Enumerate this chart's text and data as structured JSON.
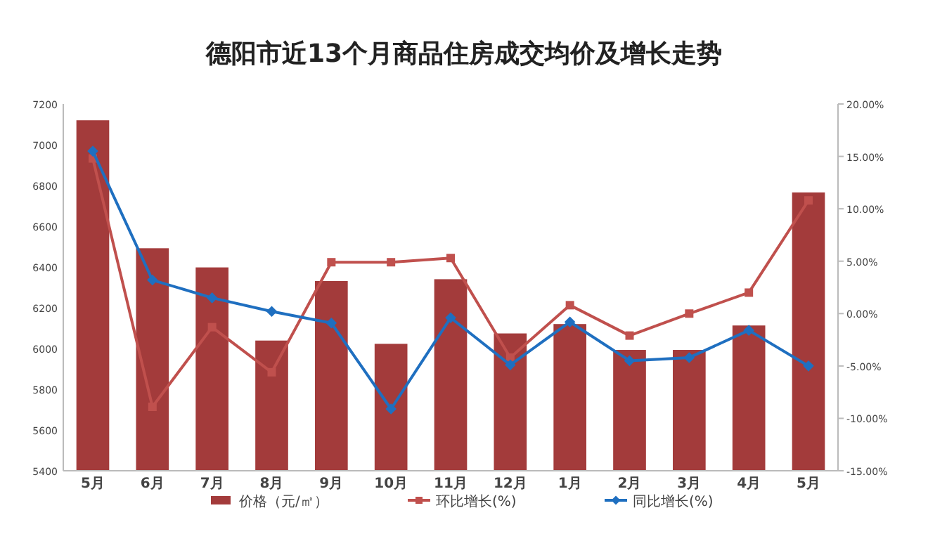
{
  "chart_data": {
    "type": "bar",
    "title": "德阳市近13个月商品住房成交均价及增长走势",
    "categories": [
      "5月",
      "6月",
      "7月",
      "8月",
      "9月",
      "10月",
      "11月",
      "12月",
      "1月",
      "2月",
      "3月",
      "4月",
      "5月"
    ],
    "series": [
      {
        "name": "价格（元/㎡）",
        "color": "#a33b3b",
        "values": [
          7120,
          6492,
          6398,
          6039,
          6331,
          6023,
          6340,
          6074,
          6120,
          5993,
          5993,
          6113,
          6766
        ]
      },
      {
        "name": "环比增长(%)",
        "type": "line",
        "axis": "y2",
        "marker": "square",
        "color": "#c0504d",
        "values": [
          14.8,
          -8.9,
          -1.3,
          -5.6,
          4.9,
          4.9,
          5.3,
          -4.2,
          0.8,
          -2.1,
          0.0,
          2.0,
          10.8
        ]
      },
      {
        "name": "同比增长(%)",
        "type": "line",
        "axis": "y2",
        "marker": "diamond",
        "color": "#1f6fc0",
        "values": [
          15.5,
          3.2,
          1.5,
          0.2,
          -0.9,
          -9.1,
          -0.4,
          -4.9,
          -0.8,
          -4.5,
          -4.2,
          -1.6,
          -5.0
        ]
      }
    ],
    "ylim": [
      5400,
      7200
    ],
    "yticks": [
      5400,
      5600,
      5800,
      6000,
      6200,
      6400,
      6600,
      6800,
      7000,
      7200
    ],
    "y2lim": [
      -15,
      20
    ],
    "y2ticks": [
      {
        "value": -15,
        "label": "-15.00%"
      },
      {
        "value": -10,
        "label": "-10.00%"
      },
      {
        "value": -5,
        "label": "-5.00%"
      },
      {
        "value": 0,
        "label": "0.00%"
      },
      {
        "value": 5,
        "label": "5.00%"
      },
      {
        "value": 10,
        "label": "10.00%"
      },
      {
        "value": 15,
        "label": "15.00%"
      },
      {
        "value": 20,
        "label": "20.00%"
      }
    ],
    "grid": false,
    "legend": "bottom"
  }
}
